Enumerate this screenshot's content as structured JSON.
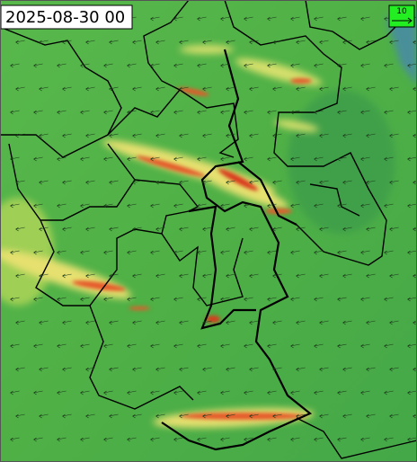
{
  "timestamp": "2025-08-30 00",
  "legend": {
    "label": "10"
  }
}
